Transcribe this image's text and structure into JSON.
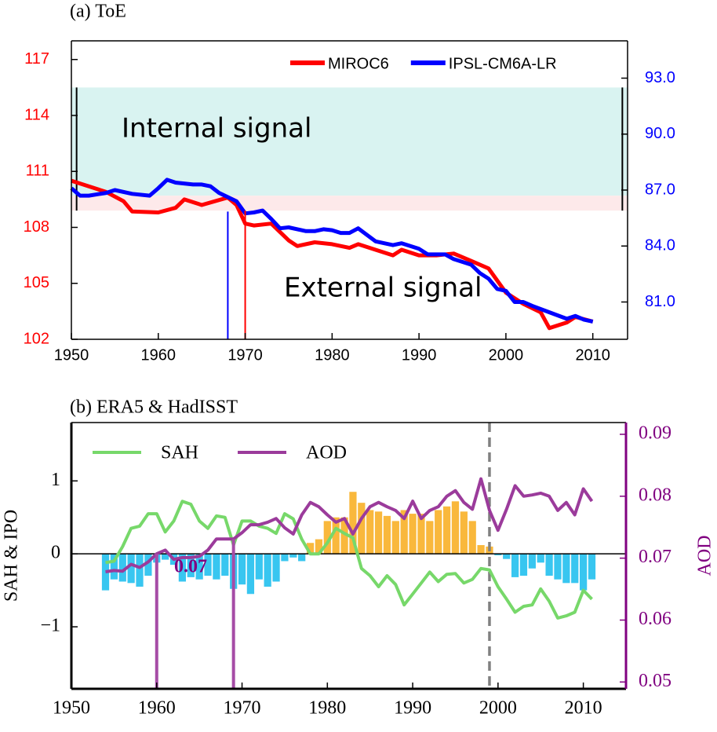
{
  "chart_data": [
    {
      "type": "line",
      "title": "(a) ToE",
      "xlim": [
        1950,
        2014
      ],
      "xticks": [
        1950,
        1960,
        1970,
        1980,
        1990,
        2000,
        2010
      ],
      "ylim": [
        102,
        118
      ],
      "yticks": [
        102,
        105,
        108,
        111,
        114,
        117
      ],
      "y_color": "#ff0000",
      "y2lim": [
        79,
        95
      ],
      "y2ticks": [
        {
          "value": 81,
          "label": "81.0"
        },
        {
          "value": 84,
          "label": "84.0"
        },
        {
          "value": 87,
          "label": "87.0"
        },
        {
          "value": 90,
          "label": "90.0"
        },
        {
          "value": 93,
          "label": "93.0"
        }
      ],
      "y2_color": "#0000ff",
      "legend": "upper right",
      "bands": [
        {
          "range": [
            109.7,
            115.5
          ],
          "color": "#d9f3f1"
        },
        {
          "range": [
            108.9,
            109.7
          ],
          "color": "#fde9ea"
        }
      ],
      "band_edges": [
        1950.6,
        2013.4
      ],
      "markers": [
        {
          "x": 1968,
          "top": 108.85,
          "color": "#0000ff"
        },
        {
          "x": 1970,
          "top": 108.9,
          "color": "#ff0000"
        }
      ],
      "annotations": [
        {
          "text": "Internal signal",
          "color": "#000000"
        },
        {
          "text": "External signal",
          "color": "#000000"
        }
      ],
      "series": [
        {
          "name": "MIROC6",
          "color": "#ff0000",
          "axis": "y",
          "x": [
            1950,
            1952,
            1954,
            1956,
            1957,
            1960,
            1962,
            1963,
            1965,
            1968,
            1969,
            1970,
            1971,
            1973,
            1975,
            1976,
            1978,
            1980,
            1982,
            1983,
            1985,
            1987,
            1988,
            1990,
            1992,
            1994,
            1996,
            1998,
            2000,
            2002,
            2004,
            2005,
            2007,
            2008,
            2010
          ],
          "values": [
            110.5,
            110.2,
            109.9,
            109.4,
            108.85,
            108.8,
            109.05,
            109.5,
            109.2,
            109.6,
            109.2,
            108.2,
            108.1,
            108.2,
            107.3,
            107.0,
            107.2,
            107.1,
            106.9,
            107.1,
            106.8,
            106.5,
            106.8,
            106.5,
            106.5,
            106.6,
            106.2,
            105.8,
            104.5,
            103.9,
            103.45,
            102.6,
            102.9,
            103.2,
            102.95
          ]
        },
        {
          "name": "IPSL-CM6A-LR",
          "color": "#0000ff",
          "axis": "y2",
          "x": [
            1950,
            1951,
            1952,
            1954,
            1955,
            1957,
            1959,
            1960,
            1961,
            1962,
            1964,
            1965,
            1966,
            1967,
            1969,
            1970,
            1971,
            1972,
            1973,
            1974,
            1975,
            1977,
            1978,
            1979,
            1980,
            1981,
            1982,
            1983,
            1985,
            1987,
            1988,
            1990,
            1991,
            1993,
            1994,
            1996,
            1997,
            1998,
            1999,
            2000,
            2001,
            2002,
            2003,
            2005,
            2007,
            2008,
            2009,
            2010
          ],
          "values": [
            87.1,
            86.7,
            86.7,
            86.85,
            87.0,
            86.8,
            86.7,
            87.1,
            87.55,
            87.4,
            87.3,
            87.3,
            87.2,
            86.85,
            86.4,
            85.75,
            85.8,
            85.9,
            85.45,
            84.95,
            85.0,
            84.8,
            84.8,
            84.9,
            84.85,
            84.7,
            84.7,
            84.95,
            84.25,
            84.05,
            84.15,
            83.85,
            83.55,
            83.55,
            83.3,
            83.0,
            82.55,
            82.25,
            81.7,
            81.6,
            81.0,
            81.0,
            80.8,
            80.45,
            80.1,
            80.25,
            80.05,
            79.95
          ]
        }
      ]
    },
    {
      "type": "combo",
      "title": "(b) ERA5 & HadISST",
      "xlim": [
        1950,
        2015
      ],
      "xticks": [
        1950,
        1960,
        1970,
        1980,
        1990,
        2000,
        2010
      ],
      "ylim": [
        -1.85,
        1.8
      ],
      "yticks": [
        {
          "value": -1,
          "label": "−1"
        },
        0,
        1
      ],
      "y_color": "#000000",
      "ylabel": "SAH & IPO",
      "y2lim": [
        0.0489,
        0.0919
      ],
      "y2ticks": [
        0.05,
        0.06,
        0.07,
        0.08,
        0.09
      ],
      "y2_color": "#800080",
      "y2label": "AOD",
      "legend": "upper left",
      "vline": {
        "x": 1999,
        "color": "#808080"
      },
      "markers": [
        {
          "x": 1960,
          "top": 0.0707,
          "color": "#a64ca6"
        },
        {
          "x": 1969,
          "top": 0.0731,
          "color": "#a64ca6"
        }
      ],
      "annotations": [
        {
          "text": "0.07",
          "color": "#800080"
        }
      ],
      "bars": {
        "positive_color": "#f9b83c",
        "negative_color": "#38c6f0",
        "x": [
          1954,
          1955,
          1956,
          1957,
          1958,
          1959,
          1960,
          1961,
          1962,
          1963,
          1964,
          1965,
          1966,
          1967,
          1968,
          1969,
          1970,
          1971,
          1972,
          1973,
          1974,
          1975,
          1976,
          1977,
          1978,
          1979,
          1980,
          1981,
          1982,
          1983,
          1984,
          1985,
          1986,
          1987,
          1988,
          1989,
          1990,
          1991,
          1992,
          1993,
          1994,
          1995,
          1996,
          1997,
          1998,
          1999,
          2000,
          2001,
          2002,
          2003,
          2004,
          2005,
          2006,
          2007,
          2008,
          2009,
          2010,
          2011
        ],
        "values": [
          -0.5,
          -0.35,
          -0.38,
          -0.4,
          -0.45,
          -0.3,
          -0.12,
          -0.08,
          -0.15,
          -0.38,
          -0.32,
          -0.35,
          -0.3,
          -0.35,
          -0.3,
          -0.48,
          -0.42,
          -0.55,
          -0.35,
          -0.45,
          -0.38,
          -0.1,
          -0.05,
          -0.1,
          0.15,
          0.2,
          0.45,
          0.5,
          0.5,
          0.85,
          0.7,
          0.6,
          0.58,
          0.52,
          0.45,
          0.6,
          0.55,
          0.55,
          0.45,
          0.6,
          0.65,
          0.72,
          0.58,
          0.45,
          0.12,
          0.1,
          -0.02,
          -0.07,
          -0.32,
          -0.3,
          -0.2,
          -0.12,
          -0.3,
          -0.35,
          -0.4,
          -0.4,
          -0.5,
          -0.35
        ]
      },
      "series": [
        {
          "name": "SAH",
          "color": "#77d86a",
          "axis": "y",
          "x": [
            1954,
            1955,
            1956,
            1957,
            1958,
            1959,
            1960,
            1961,
            1962,
            1963,
            1964,
            1965,
            1966,
            1967,
            1968,
            1969,
            1970,
            1971,
            1972,
            1973,
            1974,
            1975,
            1976,
            1977,
            1978,
            1979,
            1980,
            1981,
            1982,
            1983,
            1984,
            1985,
            1986,
            1987,
            1988,
            1989,
            1990,
            1991,
            1992,
            1993,
            1994,
            1995,
            1996,
            1997,
            1998,
            1999,
            2000,
            2001,
            2002,
            2003,
            2004,
            2005,
            2006,
            2007,
            2008,
            2009,
            2010,
            2011
          ],
          "values": [
            -0.12,
            -0.1,
            0.1,
            0.35,
            0.38,
            0.55,
            0.55,
            0.3,
            0.45,
            0.72,
            0.68,
            0.45,
            0.35,
            0.52,
            0.5,
            0.12,
            0.45,
            0.45,
            0.38,
            0.35,
            0.28,
            0.55,
            0.48,
            0.2,
            0.0,
            0.0,
            0.15,
            0.35,
            0.28,
            0.22,
            -0.2,
            -0.3,
            -0.45,
            -0.3,
            -0.42,
            -0.7,
            -0.55,
            -0.4,
            -0.25,
            -0.38,
            -0.28,
            -0.27,
            -0.4,
            -0.35,
            -0.2,
            -0.22,
            -0.45,
            -0.62,
            -0.8,
            -0.72,
            -0.7,
            -0.48,
            -0.65,
            -0.88,
            -0.85,
            -0.8,
            -0.5,
            -0.62
          ]
        },
        {
          "name": "AOD",
          "color": "#9b3b9b",
          "axis": "y2",
          "x": [
            1954,
            1955,
            1956,
            1957,
            1958,
            1959,
            1960,
            1961,
            1962,
            1963,
            1964,
            1965,
            1966,
            1967,
            1968,
            1969,
            1970,
            1971,
            1972,
            1973,
            1974,
            1975,
            1976,
            1977,
            1978,
            1979,
            1980,
            1981,
            1982,
            1983,
            1984,
            1985,
            1986,
            1987,
            1988,
            1989,
            1990,
            1991,
            1992,
            1993,
            1994,
            1995,
            1996,
            1997,
            1998,
            1999,
            2000,
            2001,
            2002,
            2003,
            2004,
            2005,
            2006,
            2007,
            2008,
            2009,
            2010,
            2011
          ],
          "values": [
            0.0678,
            0.068,
            0.0679,
            0.069,
            0.0685,
            0.0694,
            0.0707,
            0.0713,
            0.0698,
            0.0701,
            0.0701,
            0.0703,
            0.0713,
            0.0731,
            0.0731,
            0.0731,
            0.0741,
            0.0754,
            0.0754,
            0.0758,
            0.0764,
            0.0749,
            0.0739,
            0.077,
            0.079,
            0.0783,
            0.077,
            0.0758,
            0.0764,
            0.0739,
            0.0764,
            0.0783,
            0.079,
            0.0783,
            0.0777,
            0.0764,
            0.0792,
            0.0764,
            0.0777,
            0.0783,
            0.08,
            0.0809,
            0.079,
            0.0779,
            0.0828,
            0.0777,
            0.0745,
            0.0779,
            0.0817,
            0.08,
            0.0802,
            0.0805,
            0.08,
            0.0777,
            0.079,
            0.077,
            0.0812,
            0.0792
          ]
        }
      ]
    }
  ]
}
